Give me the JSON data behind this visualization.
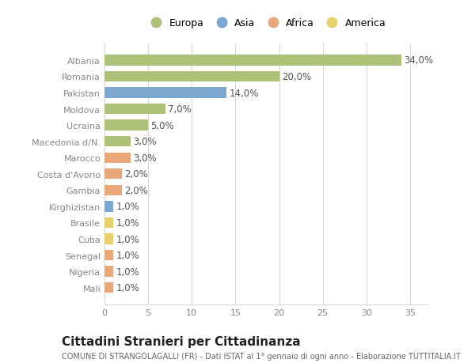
{
  "categories": [
    "Albania",
    "Romania",
    "Pakistan",
    "Moldova",
    "Ucraina",
    "Macedonia d/N.",
    "Marocco",
    "Costa d'Avorio",
    "Gambia",
    "Kirghizistan",
    "Brasile",
    "Cuba",
    "Senegal",
    "Nigeria",
    "Mali"
  ],
  "values": [
    34.0,
    20.0,
    14.0,
    7.0,
    5.0,
    3.0,
    3.0,
    2.0,
    2.0,
    1.0,
    1.0,
    1.0,
    1.0,
    1.0,
    1.0
  ],
  "continents": [
    "Europa",
    "Europa",
    "Asia",
    "Europa",
    "Europa",
    "Europa",
    "Africa",
    "Africa",
    "Africa",
    "Asia",
    "America",
    "America",
    "Africa",
    "Africa",
    "Africa"
  ],
  "colors": {
    "Europa": "#adc178",
    "Asia": "#7ba7d0",
    "Africa": "#e8a87a",
    "America": "#e8d06a"
  },
  "title": "Cittadini Stranieri per Cittadinanza",
  "subtitle": "COMUNE DI STRANGOLAGALLI (FR) - Dati ISTAT al 1° gennaio di ogni anno - Elaborazione TUTTITALIA.IT",
  "xlim": [
    0,
    37
  ],
  "xticks": [
    0,
    5,
    10,
    15,
    20,
    25,
    30,
    35
  ],
  "background_color": "#ffffff",
  "plot_bg_color": "#ffffff",
  "grid_color": "#d8d8d8",
  "bar_height": 0.65,
  "label_fontsize": 8.5,
  "tick_fontsize": 8,
  "title_fontsize": 11,
  "subtitle_fontsize": 7,
  "legend_fontsize": 9
}
